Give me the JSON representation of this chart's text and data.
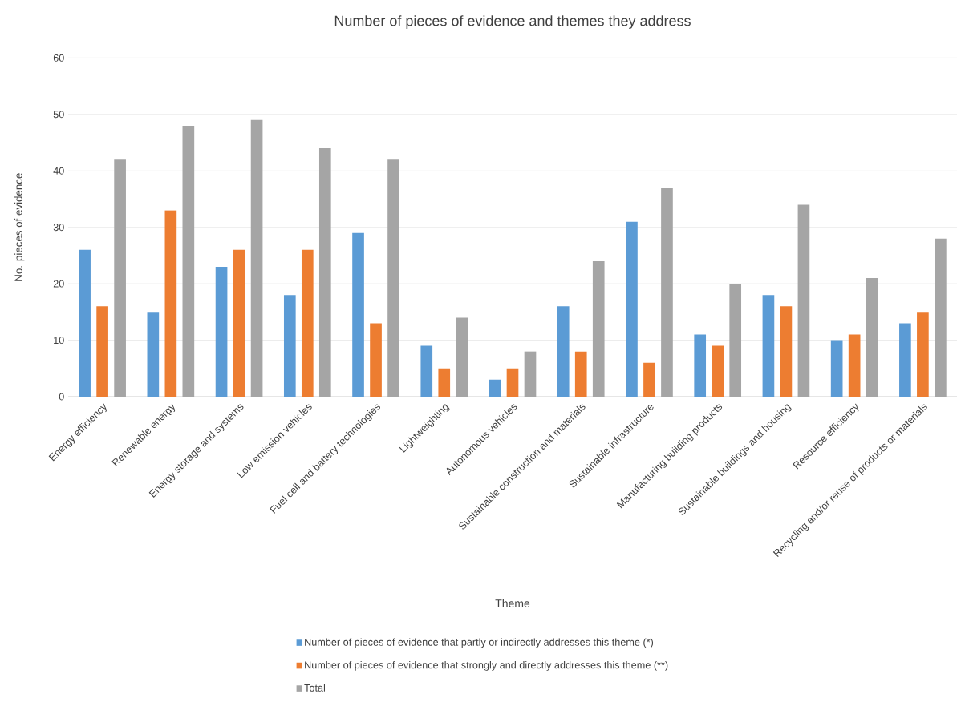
{
  "chart_data": {
    "type": "bar",
    "title": "Number of pieces of evidence and themes they address",
    "xlabel": "Theme",
    "ylabel": "No. pieces of evidence",
    "categories": [
      "Energy efficiency",
      "Renewable energy",
      "Energy storage and systems",
      "Low emission vehicles",
      "Fuel cell and battery technologies",
      "Lightweighting",
      "Autonomous vehicles",
      "Sustainable construction and materials",
      "Sustainable infrastructure",
      "Manufacturing building products",
      "Sustainable buildings and housing",
      "Resource efficiency",
      "Recycling and/or reuse of products or materials"
    ],
    "series": [
      {
        "name": "Number of pieces of evidence that  partly or indirectly addresses this theme (*)",
        "color": "#5b9bd5",
        "values": [
          26,
          15,
          23,
          18,
          29,
          9,
          3,
          16,
          31,
          11,
          18,
          10,
          13
        ]
      },
      {
        "name": "Number of pieces of evidence that strongly and directly addresses this theme (**)",
        "color": "#ed7d31",
        "values": [
          16,
          33,
          26,
          26,
          13,
          5,
          5,
          8,
          6,
          9,
          16,
          11,
          15
        ]
      },
      {
        "name": "Total",
        "color": "#a5a5a5",
        "values": [
          42,
          48,
          49,
          44,
          42,
          14,
          8,
          24,
          37,
          20,
          34,
          21,
          28
        ]
      }
    ],
    "ylim": [
      0,
      60
    ],
    "yticks": [
      0,
      10,
      20,
      30,
      40,
      50,
      60
    ],
    "grid": "y",
    "legend": "bottom"
  }
}
